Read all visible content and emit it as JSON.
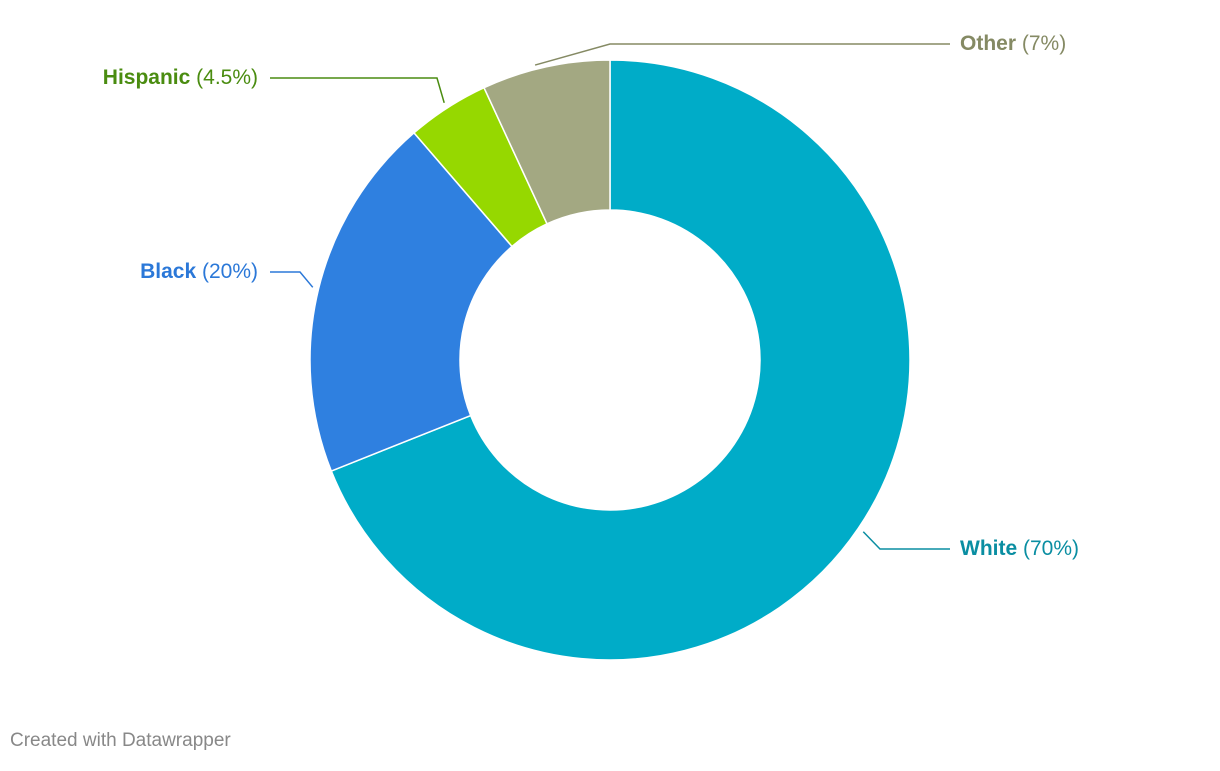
{
  "chart_data": {
    "type": "pie",
    "subtype": "donut",
    "slices": [
      {
        "label": "White",
        "value": 70,
        "value_label": "(70%)",
        "color": "#00acc8",
        "label_color": "#0a8ea2"
      },
      {
        "label": "Black",
        "value": 20,
        "value_label": "(20%)",
        "color": "#2f80e0",
        "label_color": "#2b78d8"
      },
      {
        "label": "Hispanic",
        "value": 4.5,
        "value_label": "(4.5%)",
        "color": "#96d800",
        "label_color": "#4a8c10"
      },
      {
        "label": "Other",
        "value": 7,
        "value_label": "(7%)",
        "color": "#a3a882",
        "label_color": "#858a64"
      }
    ]
  },
  "credit": "Created with Datawrapper"
}
